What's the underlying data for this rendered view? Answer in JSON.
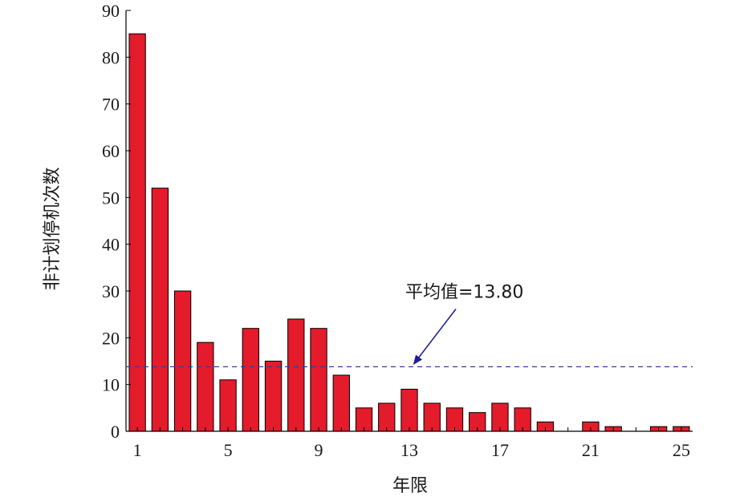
{
  "chart_data": {
    "type": "bar",
    "xlabel": "年限",
    "ylabel": "非计划停机次数",
    "ylim": [
      0,
      90
    ],
    "yticks": [
      0,
      10,
      20,
      30,
      40,
      50,
      60,
      70,
      80,
      90
    ],
    "xticks": [
      1,
      5,
      9,
      13,
      17,
      21,
      25
    ],
    "x": [
      1,
      2,
      3,
      4,
      5,
      6,
      7,
      8,
      9,
      10,
      11,
      12,
      13,
      14,
      15,
      16,
      17,
      18,
      19,
      20,
      21,
      22,
      23,
      24,
      25
    ],
    "values": [
      85,
      52,
      30,
      19,
      11,
      22,
      15,
      24,
      22,
      12,
      5,
      6,
      9,
      6,
      5,
      4,
      6,
      5,
      2,
      0,
      2,
      1,
      0,
      1,
      1
    ],
    "bar_color": "#e41b2b",
    "grid": false,
    "mean_line": {
      "value": 13.8,
      "color": "#3b3b9a",
      "style": "dashed"
    },
    "annotation": {
      "text": "平均值=13.80",
      "arrow_color": "#1f1f8f"
    }
  }
}
